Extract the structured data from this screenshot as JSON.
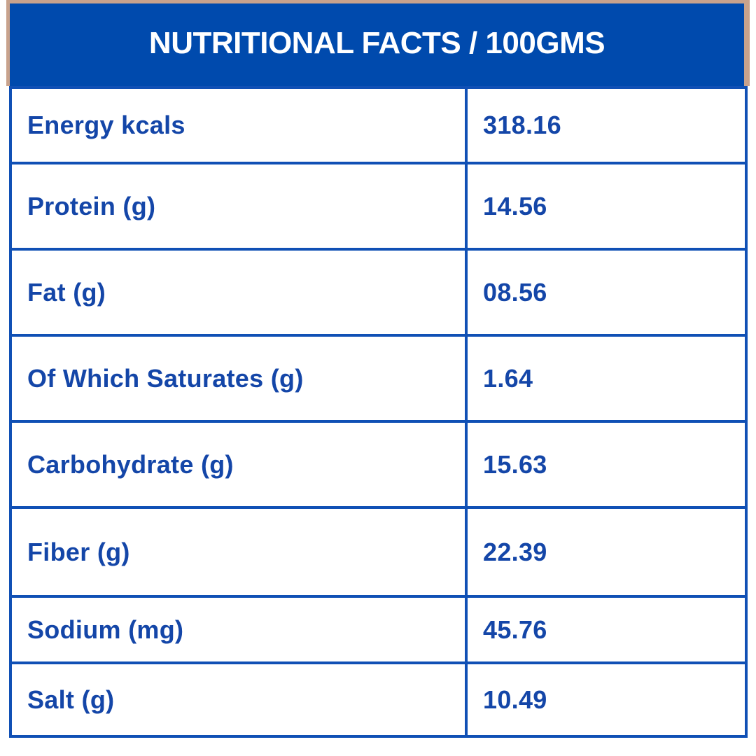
{
  "header": {
    "title": "NUTRITIONAL FACTS / 100GMS"
  },
  "table": {
    "rows": [
      {
        "label": "Energy kcals",
        "value": "318.16"
      },
      {
        "label": "Protein (g)",
        "value": "14.56"
      },
      {
        "label": "Fat (g)",
        "value": "08.56"
      },
      {
        "label": "Of Which Saturates (g)",
        "value": "1.64"
      },
      {
        "label": "Carbohydrate (g)",
        "value": "15.63"
      },
      {
        "label": "Fiber (g)",
        "value": "22.39"
      },
      {
        "label": "Sodium (mg)",
        "value": "45.76"
      },
      {
        "label": "Salt (g)",
        "value": "10.49"
      }
    ]
  },
  "colors": {
    "header_background": "#004aad",
    "header_frame": "#c8a28c",
    "table_border": "#1050b5",
    "text": "#1446a8",
    "header_text": "#ffffff",
    "background": "#ffffff"
  }
}
